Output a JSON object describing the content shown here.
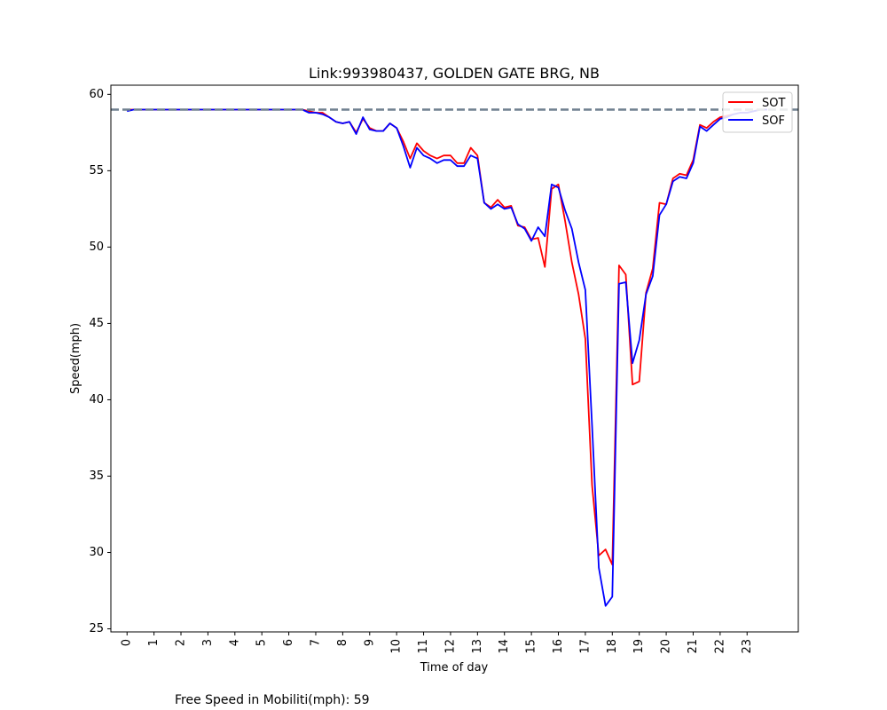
{
  "chart_data": {
    "type": "line",
    "title": "Link:993980437, GOLDEN GATE BRG, NB",
    "xlabel": "Time of day",
    "ylabel": "Speed(mph)",
    "x_ticks": [
      "0",
      "1",
      "2",
      "3",
      "4",
      "5",
      "6",
      "7",
      "8",
      "9",
      "10",
      "11",
      "12",
      "13",
      "14",
      "15",
      "16",
      "17",
      "18",
      "19",
      "20",
      "21",
      "22",
      "23"
    ],
    "y_ticks": [
      25,
      30,
      35,
      40,
      45,
      50,
      55,
      60
    ],
    "xlim": [
      -0.6,
      24.9
    ],
    "ylim": [
      24.8,
      60.6
    ],
    "grid": false,
    "legend_position": "top-right",
    "reference_line": {
      "value": 59,
      "color": "#708090",
      "style": "dashed"
    },
    "series": [
      {
        "name": "SOT",
        "color": "#ff0000",
        "x": [
          0,
          0.25,
          0.5,
          0.75,
          1,
          1.25,
          1.5,
          1.75,
          2,
          2.25,
          2.5,
          2.75,
          3,
          3.25,
          3.5,
          3.75,
          4,
          4.25,
          4.5,
          4.75,
          5,
          5.25,
          5.5,
          5.75,
          6,
          6.25,
          6.5,
          6.75,
          7,
          7.25,
          7.5,
          7.75,
          8,
          8.25,
          8.5,
          8.75,
          9,
          9.25,
          9.5,
          9.75,
          10,
          10.25,
          10.5,
          10.75,
          11,
          11.25,
          11.5,
          11.75,
          12,
          12.25,
          12.5,
          12.75,
          13,
          13.25,
          13.5,
          13.75,
          14,
          14.25,
          14.5,
          14.75,
          15,
          15.25,
          15.5,
          15.75,
          16,
          16.25,
          16.5,
          16.75,
          17,
          17.25,
          17.5,
          17.75,
          18,
          18.25,
          18.5,
          18.75,
          19,
          19.25,
          19.5,
          19.75,
          20,
          20.25,
          20.5,
          20.75,
          21,
          21.25,
          21.5,
          21.75,
          22,
          22.25,
          22.5,
          22.75,
          23,
          23.25,
          23.5,
          23.75
        ],
        "values": [
          59,
          59,
          59,
          59,
          59,
          59,
          59,
          59,
          59,
          59,
          59,
          59,
          59,
          59,
          59,
          59,
          59,
          59,
          59,
          59,
          59,
          59,
          59,
          59,
          59,
          59,
          59,
          58.9,
          58.8,
          58.8,
          58.5,
          58.2,
          58.1,
          58.2,
          57.5,
          58.4,
          57.8,
          57.6,
          57.6,
          58.1,
          57.8,
          56.9,
          55.8,
          56.8,
          56.3,
          56,
          55.8,
          56,
          56,
          55.5,
          55.5,
          56.5,
          56,
          52.9,
          52.6,
          53.1,
          52.6,
          52.7,
          51.4,
          51.3,
          50.5,
          50.6,
          48.7,
          53.8,
          54.1,
          51.7,
          49,
          46.9,
          44,
          34.4,
          29.8,
          30.2,
          29.2,
          48.8,
          48.2,
          41,
          41.2,
          47,
          48.6,
          52.9,
          52.8,
          54.5,
          54.8,
          54.7,
          55.7,
          58,
          57.8,
          58.2,
          58.5,
          58.6,
          58.7,
          58.8,
          58.8,
          58.9,
          59,
          59
        ]
      },
      {
        "name": "SOF",
        "color": "#0000ff",
        "x": [
          0,
          0.25,
          0.5,
          0.75,
          1,
          1.25,
          1.5,
          1.75,
          2,
          2.25,
          2.5,
          2.75,
          3,
          3.25,
          3.5,
          3.75,
          4,
          4.25,
          4.5,
          4.75,
          5,
          5.25,
          5.5,
          5.75,
          6,
          6.25,
          6.5,
          6.75,
          7,
          7.25,
          7.5,
          7.75,
          8,
          8.25,
          8.5,
          8.75,
          9,
          9.25,
          9.5,
          9.75,
          10,
          10.25,
          10.5,
          10.75,
          11,
          11.25,
          11.5,
          11.75,
          12,
          12.25,
          12.5,
          12.75,
          13,
          13.25,
          13.5,
          13.75,
          14,
          14.25,
          14.5,
          14.75,
          15,
          15.25,
          15.5,
          15.75,
          16,
          16.25,
          16.5,
          16.75,
          17,
          17.25,
          17.5,
          17.75,
          18,
          18.25,
          18.5,
          18.75,
          19,
          19.25,
          19.5,
          19.75,
          20,
          20.25,
          20.5,
          20.75,
          21,
          21.25,
          21.5,
          21.75,
          22,
          22.25,
          22.5,
          22.75,
          23,
          23.25,
          23.5,
          23.75
        ],
        "values": [
          58.9,
          59,
          59,
          59,
          59,
          59,
          59,
          59,
          59,
          59,
          59,
          59,
          59,
          59,
          59,
          59,
          59,
          59,
          59,
          59,
          59,
          59,
          59,
          59,
          59,
          59,
          59,
          58.8,
          58.8,
          58.7,
          58.5,
          58.2,
          58.1,
          58.2,
          57.4,
          58.5,
          57.7,
          57.6,
          57.6,
          58.1,
          57.8,
          56.6,
          55.2,
          56.5,
          56,
          55.8,
          55.5,
          55.7,
          55.7,
          55.3,
          55.3,
          56,
          55.8,
          52.9,
          52.5,
          52.8,
          52.5,
          52.6,
          51.5,
          51.2,
          50.4,
          51.3,
          50.7,
          54.1,
          53.9,
          52.4,
          51.2,
          49,
          47.2,
          38.3,
          29,
          26.5,
          27.1,
          47.6,
          47.7,
          42.4,
          43.9,
          46.9,
          48.1,
          52.1,
          52.8,
          54.3,
          54.6,
          54.5,
          55.5,
          57.9,
          57.6,
          58,
          58.4,
          58.5,
          58.7,
          58.8,
          58.8,
          58.9,
          59,
          59
        ]
      }
    ]
  },
  "footnote": "Free Speed in Mobiliti(mph): 59"
}
